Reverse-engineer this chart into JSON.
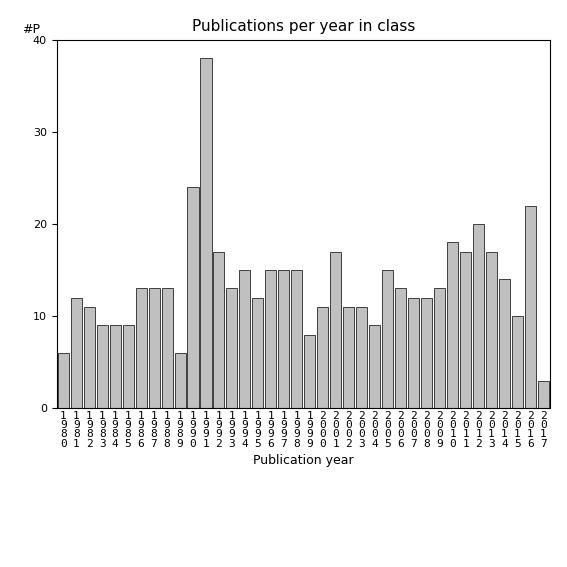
{
  "title": "Publications per year in class",
  "xlabel": "Publication year",
  "ylabel": "#P",
  "years": [
    1980,
    1981,
    1982,
    1983,
    1984,
    1985,
    1986,
    1987,
    1988,
    1989,
    1990,
    1991,
    1992,
    1993,
    1994,
    1995,
    1996,
    1997,
    1998,
    1999,
    2000,
    2001,
    2002,
    2003,
    2004,
    2005,
    2006,
    2007,
    2008,
    2009,
    2010,
    2011,
    2012,
    2013,
    2014,
    2015,
    2016,
    2017
  ],
  "values": [
    6,
    12,
    11,
    9,
    9,
    9,
    13,
    13,
    13,
    6,
    24,
    38,
    17,
    13,
    15,
    12,
    15,
    15,
    15,
    8,
    11,
    17,
    11,
    11,
    9,
    15,
    13,
    12,
    12,
    13,
    18,
    17,
    20,
    17,
    14,
    10,
    22,
    3
  ],
  "bar_color": "#c0c0c0",
  "bar_edge_color": "#000000",
  "ylim": [
    0,
    40
  ],
  "yticks": [
    0,
    10,
    20,
    30,
    40
  ],
  "background_color": "#ffffff",
  "title_fontsize": 11,
  "label_fontsize": 9,
  "tick_fontsize": 8,
  "figsize": [
    5.67,
    5.67
  ],
  "dpi": 100
}
